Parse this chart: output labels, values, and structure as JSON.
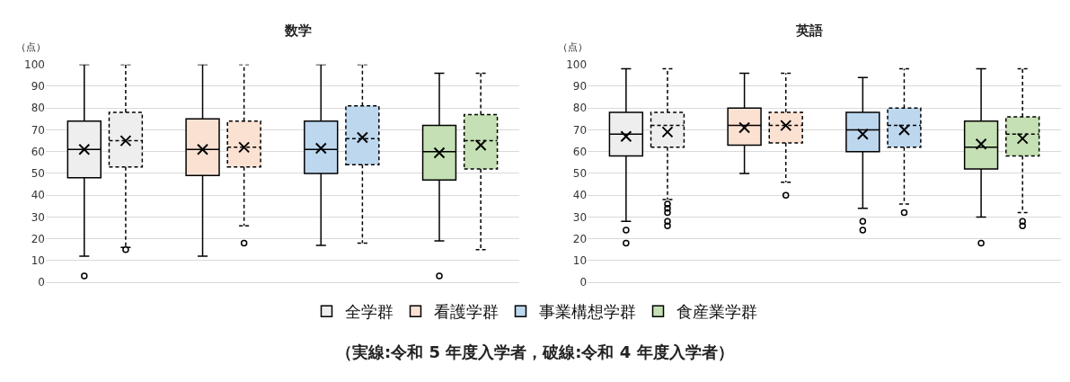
{
  "chart_data": [
    {
      "type": "box",
      "title": "数学",
      "ylabel": "（点）",
      "categories": [
        null,
        null,
        null,
        null
      ],
      "ylim": [
        0,
        100
      ],
      "yticks": [
        0,
        10,
        20,
        30,
        40,
        50,
        60,
        70,
        80,
        90,
        100
      ],
      "grid": "y",
      "tick_labels": "y",
      "legend": "bottom",
      "marker": "cross",
      "annotations": [
        "（実線:令和 5 年度入学者，破線:令和 4 年度入学者）"
      ],
      "series": [
        {
          "name": "全学群",
          "color": "#eeeeee",
          "line_style": "solid",
          "boxes": [
            {
              "low": 12,
              "q1": 48,
              "median": 61,
              "q3": 74,
              "high": 100,
              "mean": 61,
              "outliers": [
                3
              ]
            },
            null,
            null,
            null
          ]
        },
        {
          "color": "#eeeeee",
          "line_style": "dashed",
          "boxes": [
            {
              "low": 16,
              "q1": 53,
              "median": 65,
              "q3": 78,
              "high": 100,
              "mean": 65,
              "outliers": [
                15
              ]
            },
            null,
            null,
            null
          ]
        },
        {
          "name": "看護学群",
          "color": "#fbe1d2",
          "line_style": "solid",
          "boxes": [
            null,
            {
              "low": 12,
              "q1": 49,
              "median": 61,
              "q3": 75,
              "high": 100,
              "mean": 61
            },
            null,
            null
          ]
        },
        {
          "color": "#fbe1d2",
          "line_style": "dashed",
          "boxes": [
            null,
            {
              "low": 26,
              "q1": 53,
              "median": 62,
              "q3": 74,
              "high": 100,
              "mean": 62,
              "outliers": [
                18
              ]
            },
            null,
            null
          ]
        },
        {
          "name": "事業構想学群",
          "color": "#bdd7ee",
          "line_style": "solid",
          "boxes": [
            null,
            null,
            {
              "low": 17,
              "q1": 50,
              "median": 61,
              "q3": 74,
              "high": 100,
              "mean": 61.5
            },
            null
          ]
        },
        {
          "color": "#bdd7ee",
          "line_style": "dashed",
          "boxes": [
            null,
            null,
            {
              "low": 18,
              "q1": 54,
              "median": 66,
              "q3": 81,
              "high": 100,
              "mean": 66.5
            },
            null
          ]
        },
        {
          "name": "食産業学群",
          "color": "#c5e0b4",
          "line_style": "solid",
          "boxes": [
            null,
            null,
            null,
            {
              "low": 19,
              "q1": 47,
              "median": 60,
              "q3": 72,
              "high": 96,
              "mean": 59.5,
              "outliers": [
                3
              ]
            }
          ]
        },
        {
          "color": "#c5e0b4",
          "line_style": "dashed",
          "boxes": [
            null,
            null,
            null,
            {
              "low": 15,
              "q1": 52,
              "median": 65,
              "q3": 77,
              "high": 96,
              "mean": 63
            }
          ]
        }
      ]
    },
    {
      "type": "box",
      "title": "英語",
      "ylabel": "（点）",
      "categories": [
        null,
        null,
        null,
        null
      ],
      "ylim": [
        0,
        100
      ],
      "yticks": [
        0,
        10,
        20,
        30,
        40,
        50,
        60,
        70,
        80,
        90,
        100
      ],
      "grid": "y",
      "tick_labels": "y",
      "marker": "cross",
      "series": [
        {
          "color": "#eeeeee",
          "line_style": "solid",
          "boxes": [
            {
              "low": 28,
              "q1": 58,
              "median": 68,
              "q3": 78,
              "high": 98,
              "mean": 67,
              "outliers": [
                24,
                18
              ]
            },
            null,
            null,
            null
          ]
        },
        {
          "color": "#eeeeee",
          "line_style": "dashed",
          "boxes": [
            {
              "low": 38,
              "q1": 62,
              "median": 72,
              "q3": 78,
              "high": 98,
              "mean": 69,
              "outliers": [
                36,
                34,
                32,
                28,
                26
              ]
            },
            null,
            null,
            null
          ]
        },
        {
          "color": "#fbe1d2",
          "line_style": "solid",
          "boxes": [
            null,
            {
              "low": 50,
              "q1": 63,
              "median": 72,
              "q3": 80,
              "high": 96,
              "mean": 71
            },
            null,
            null
          ]
        },
        {
          "color": "#fbe1d2",
          "line_style": "dashed",
          "boxes": [
            null,
            {
              "low": 46,
              "q1": 64,
              "median": 72,
              "q3": 78,
              "high": 96,
              "mean": 72,
              "outliers": [
                40
              ]
            },
            null,
            null
          ]
        },
        {
          "color": "#bdd7ee",
          "line_style": "solid",
          "boxes": [
            null,
            null,
            {
              "low": 34,
              "q1": 60,
              "median": 70,
              "q3": 78,
              "high": 94,
              "mean": 68,
              "outliers": [
                28,
                24
              ]
            },
            null
          ]
        },
        {
          "color": "#bdd7ee",
          "line_style": "dashed",
          "boxes": [
            null,
            null,
            {
              "low": 36,
              "q1": 62,
              "median": 72,
              "q3": 80,
              "high": 98,
              "mean": 70,
              "outliers": [
                32
              ]
            },
            null
          ]
        },
        {
          "color": "#c5e0b4",
          "line_style": "solid",
          "boxes": [
            null,
            null,
            null,
            {
              "low": 30,
              "q1": 52,
              "median": 62,
              "q3": 74,
              "high": 98,
              "mean": 63.5,
              "outliers": [
                18
              ]
            }
          ]
        },
        {
          "color": "#c5e0b4",
          "line_style": "dashed",
          "boxes": [
            null,
            null,
            null,
            {
              "low": 32,
              "q1": 58,
              "median": 68,
              "q3": 76,
              "high": 98,
              "mean": 66,
              "outliers": [
                28,
                26
              ]
            }
          ]
        }
      ]
    }
  ]
}
